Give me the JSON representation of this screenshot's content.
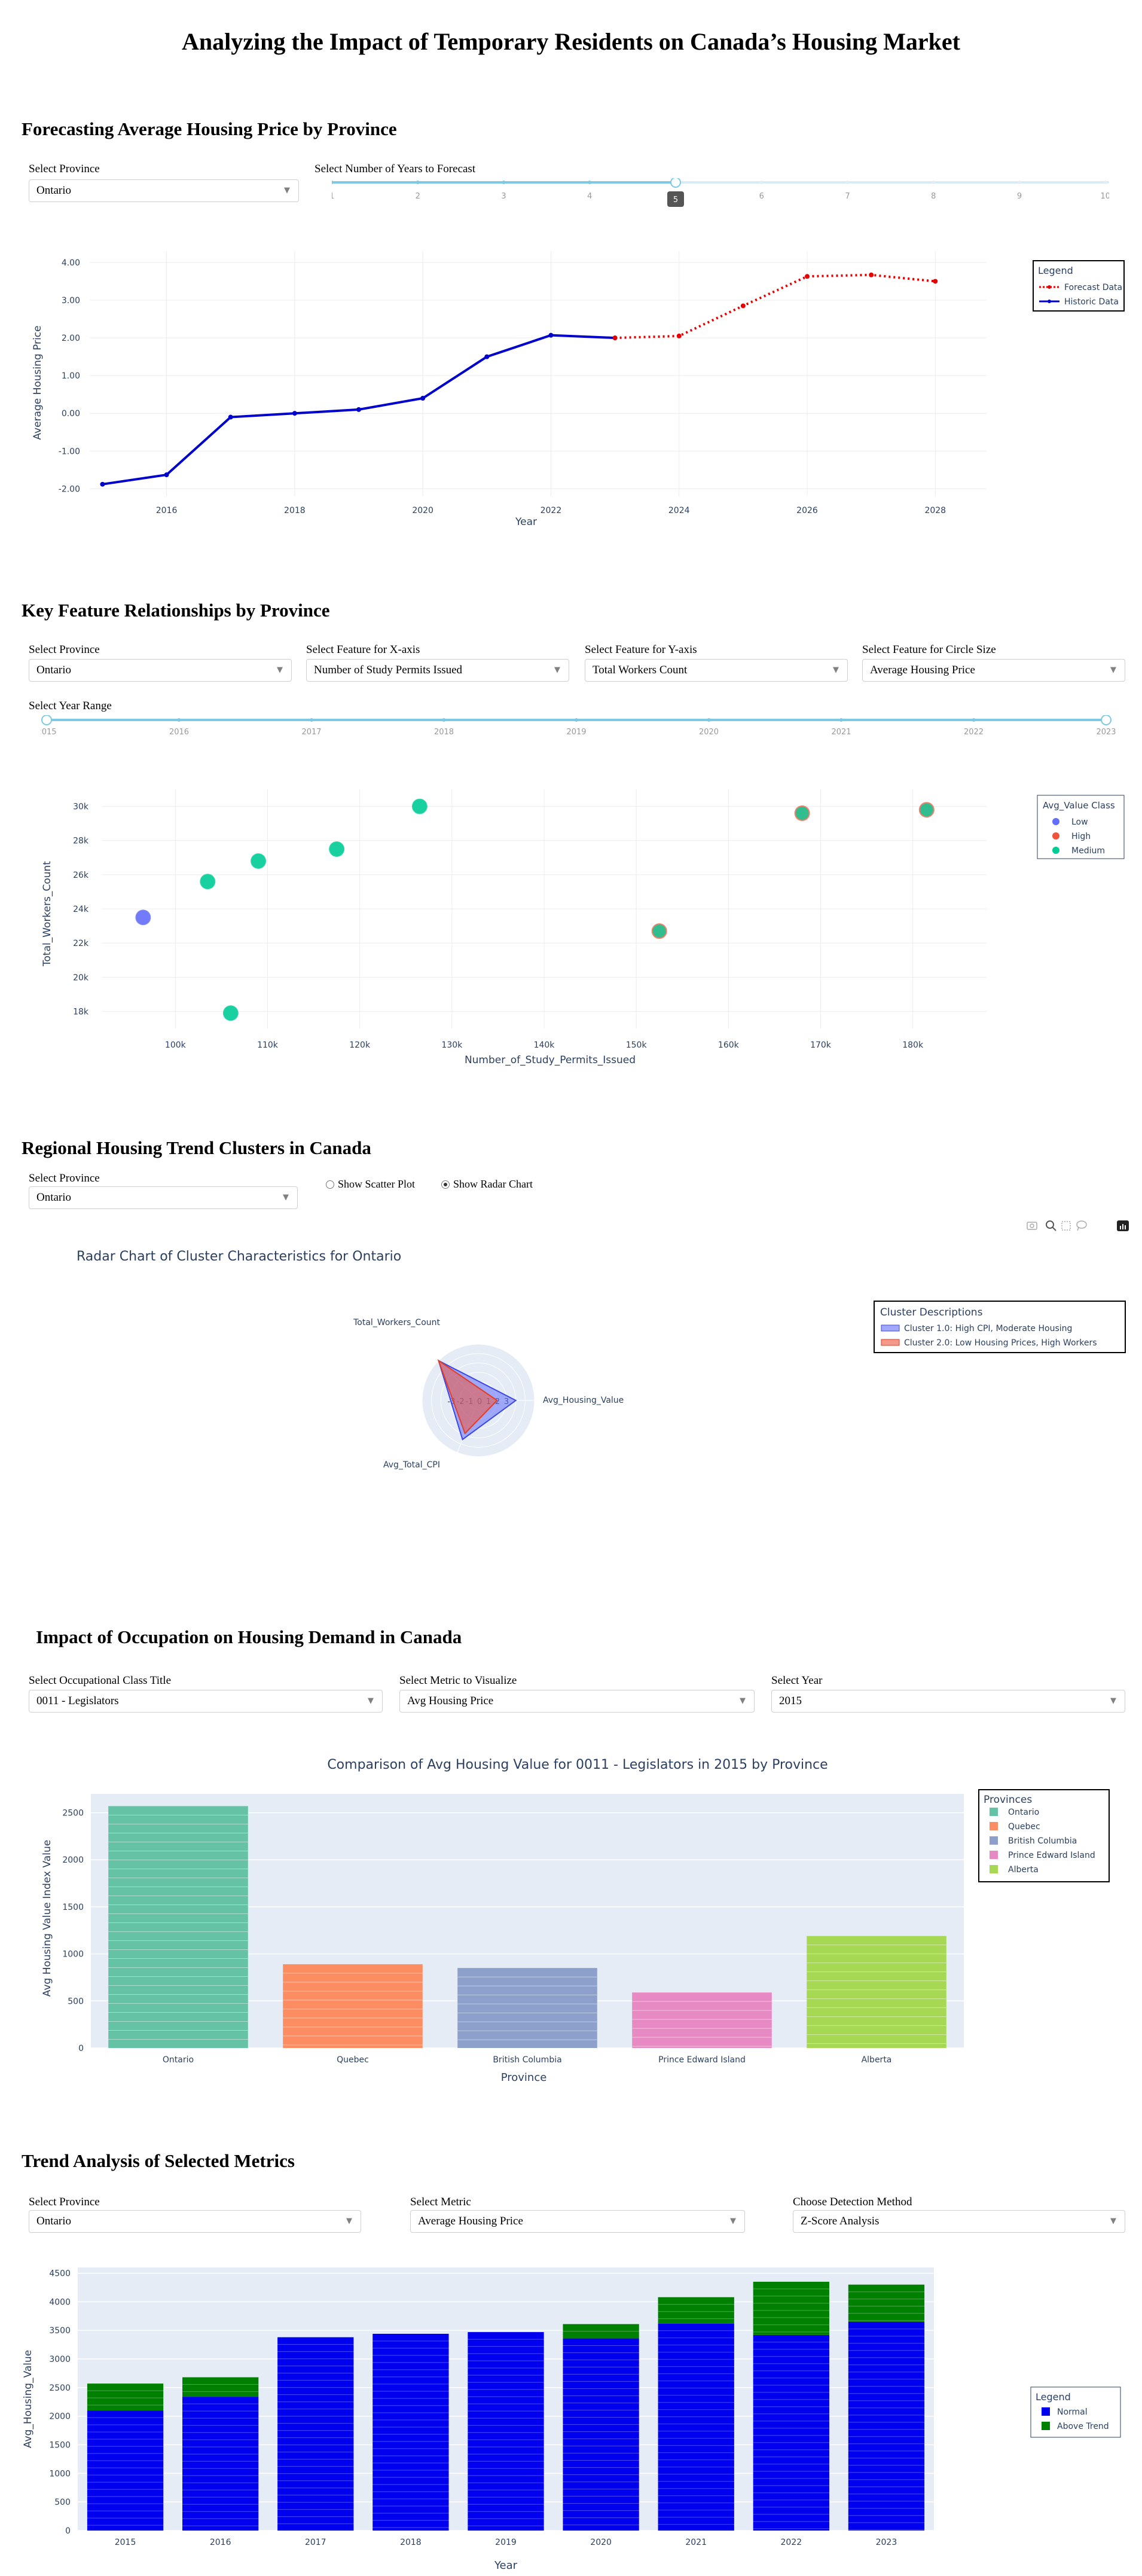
{
  "page_title": "Analyzing the Impact of Temporary Residents on Canada’s Housing Market",
  "forecast": {
    "title": "Forecasting Average Housing Price by Province",
    "province_label": "Select Province",
    "province_value": "Ontario",
    "years_label": "Select Number of Years to Forecast",
    "slider_marks": [
      "1",
      "2",
      "3",
      "4",
      "5",
      "6",
      "7",
      "8",
      "9",
      "10"
    ],
    "slider_value": "5"
  },
  "relationships": {
    "title": "Key Feature Relationships by Province",
    "province_label": "Select Province",
    "province_value": "Ontario",
    "x_label": "Select Feature for X-axis",
    "x_value": "Number of Study Permits Issued",
    "y_label": "Select Feature for Y-axis",
    "y_value": "Total Workers Count",
    "size_label": "Select Feature for Circle Size",
    "size_value": "Average Housing Price",
    "year_range_label": "Select Year Range",
    "year_marks": [
      "2015",
      "2016",
      "2017",
      "2018",
      "2019",
      "2020",
      "2021",
      "2022",
      "2023"
    ]
  },
  "clusters": {
    "title": "Regional Housing Trend Clusters in Canada",
    "province_label": "Select Province",
    "province_value": "Ontario",
    "radio_scatter": "Show Scatter Plot",
    "radio_radar": "Show Radar Chart"
  },
  "occupation": {
    "title": "Impact of Occupation on Housing Demand in Canada",
    "class_label": "Select Occupational Class Title",
    "class_value": "0011 - Legislators",
    "metric_label": "Select Metric to Visualize",
    "metric_value": "Avg Housing Price",
    "year_label": "Select Year",
    "year_value": "2015"
  },
  "trend": {
    "title": "Trend Analysis of Selected Metrics",
    "province_label": "Select Province",
    "province_value": "Ontario",
    "metric_label": "Select Metric",
    "metric_value": "Average Housing Price",
    "method_label": "Choose Detection Method",
    "method_value": "Z-Score Analysis"
  },
  "colors": {
    "forecast": "#e60000",
    "historic": "#0000cc",
    "low": "#636efa",
    "high": "#ef553b",
    "medium": "#00cc96",
    "normal": "#0000ee",
    "above": "#008000"
  },
  "chart_data": [
    {
      "type": "line",
      "x": [
        2015,
        2016,
        2017,
        2018,
        2019,
        2020,
        2021,
        2022,
        2023,
        2024,
        2025,
        2026,
        2027,
        2028
      ],
      "series": [
        {
          "name": "Historic Data",
          "x": [
            2015,
            2016,
            2017,
            2018,
            2019,
            2020,
            2021,
            2022,
            2023
          ],
          "values": [
            -1.88,
            -1.63,
            -0.1,
            0.0,
            0.1,
            0.4,
            1.5,
            2.07,
            2.0
          ]
        },
        {
          "name": "Forecast Data",
          "x": [
            2023,
            2024,
            2025,
            2026,
            2027,
            2028
          ],
          "values": [
            2.0,
            2.05,
            2.85,
            3.63,
            3.67,
            3.5
          ]
        }
      ],
      "xlabel": "Year",
      "ylabel": "Average Housing Price",
      "yticks": [
        "-2.00",
        "-1.00",
        "0.00",
        "1.00",
        "2.00",
        "3.00",
        "4.00"
      ],
      "xticks": [
        "2016",
        "2018",
        "2020",
        "2022",
        "2024",
        "2026",
        "2028"
      ],
      "ylim": [
        -2.2,
        4.3
      ],
      "xlim": [
        2014.8,
        2028.8
      ],
      "legend_title": "Legend",
      "legend_position": "top-right"
    },
    {
      "type": "scatter",
      "points": [
        {
          "x": 96500,
          "y": 23500,
          "cls": "Low"
        },
        {
          "x": 103500,
          "y": 25600,
          "cls": "Medium"
        },
        {
          "x": 106000,
          "y": 17900,
          "cls": "Medium"
        },
        {
          "x": 109000,
          "y": 26800,
          "cls": "Medium"
        },
        {
          "x": 117500,
          "y": 27500,
          "cls": "Medium"
        },
        {
          "x": 126500,
          "y": 30000,
          "cls": "Medium"
        },
        {
          "x": 152500,
          "y": 22700,
          "cls": "High"
        },
        {
          "x": 168000,
          "y": 29600,
          "cls": "High"
        },
        {
          "x": 181500,
          "y": 29800,
          "cls": "High"
        }
      ],
      "xlabel": "Number_of_Study_Permits_Issued",
      "ylabel": "Total_Workers_Count",
      "xticks": [
        "100k",
        "110k",
        "120k",
        "130k",
        "140k",
        "150k",
        "160k",
        "170k",
        "180k"
      ],
      "yticks": [
        "18k",
        "20k",
        "22k",
        "24k",
        "26k",
        "28k",
        "30k"
      ],
      "xlim": [
        92000,
        188000
      ],
      "ylim": [
        17000,
        31000
      ],
      "legend_title": "Avg_Value Class",
      "legend": [
        "Low",
        "High",
        "Medium"
      ],
      "legend_position": "top-right"
    },
    {
      "type": "radar",
      "title": "Radar Chart of Cluster Characteristics for Ontario",
      "axes": [
        "Avg_Housing_Value",
        "Total_Workers_Count",
        "Avg_Total_CPI"
      ],
      "radial_ticks": [
        "-3",
        "-2",
        "-1",
        "0",
        "1",
        "2",
        "3"
      ],
      "series": [
        {
          "name": "Cluster 1.0: High CPI, Moderate Housing",
          "values": [
            1.0,
            3.0,
            1.5
          ]
        },
        {
          "name": "Cluster 2.0: Low Housing Prices, High Workers",
          "values": [
            -1.0,
            3.0,
            0.8
          ]
        }
      ],
      "legend_title": "Cluster Descriptions",
      "legend_position": "top-right"
    },
    {
      "type": "bar",
      "title": "Comparison of Avg Housing Value for 0011 - Legislators in 2015 by Province",
      "categories": [
        "Ontario",
        "Quebec",
        "British Columbia",
        "Prince Edward Island",
        "Alberta"
      ],
      "values": [
        2570,
        890,
        850,
        590,
        1190
      ],
      "colors": [
        "#66c2a5",
        "#fc8d62",
        "#8da0cb",
        "#e78ac3",
        "#a6d854"
      ],
      "xlabel": "Province",
      "ylabel": "Avg Housing Value Index Value",
      "yticks": [
        "0",
        "500",
        "1000",
        "1500",
        "2000",
        "2500"
      ],
      "ylim": [
        0,
        2700
      ],
      "legend_title": "Provinces",
      "legend_position": "top-right"
    },
    {
      "type": "bar",
      "categories": [
        "2015",
        "2016",
        "2017",
        "2018",
        "2019",
        "2020",
        "2021",
        "2022",
        "2023"
      ],
      "series": [
        {
          "name": "Normal",
          "values": [
            2100,
            2340,
            3380,
            3440,
            3470,
            3360,
            3620,
            3420,
            3650
          ]
        },
        {
          "name": "Above Trend",
          "values": [
            470,
            340,
            0,
            0,
            0,
            250,
            460,
            930,
            650
          ]
        }
      ],
      "xlabel": "Year",
      "ylabel": "Avg_Housing_Value",
      "yticks": [
        "0",
        "500",
        "1000",
        "1500",
        "2000",
        "2500",
        "3000",
        "3500",
        "4000",
        "4500"
      ],
      "ylim": [
        0,
        4600
      ],
      "legend_title": "Legend",
      "legend_position": "right"
    }
  ]
}
